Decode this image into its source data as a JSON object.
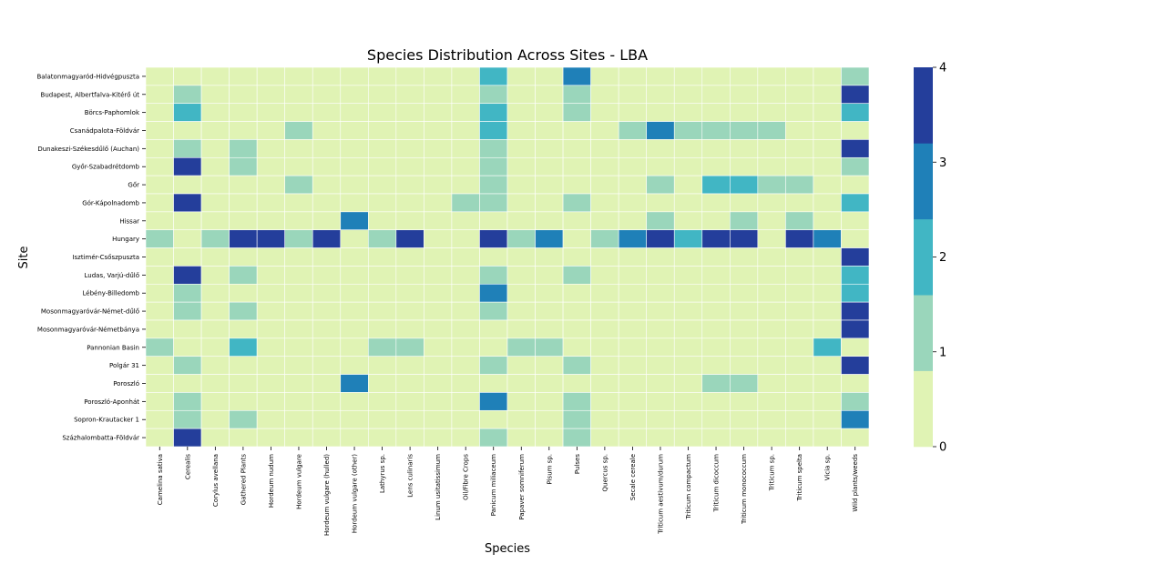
{
  "chart_data": {
    "type": "heatmap",
    "title": "Species Distribution Across Sites - LBA",
    "xlabel": "Species",
    "ylabel": "Site",
    "colorbar": {
      "range": [
        0,
        4
      ],
      "ticks": [
        "0",
        "1",
        "2",
        "3",
        "4"
      ],
      "colors": [
        "#e0f3b4",
        "#9ad6bb",
        "#41b6c4",
        "#1f80b8",
        "#243e9b"
      ]
    },
    "x_categories": [
      "Camelina sativa",
      "Cerealis",
      "Corylus avellana",
      "Gathered Plants",
      "Hordeum nudum",
      "Hordeum vulgare",
      "Hordeum vulgare (hulled)",
      "Hordeum vulgare (other)",
      "Lathyrus sp.",
      "Lens culinaris",
      "Linum usitatissimum",
      "Oil/Fibre Crops",
      "Panicum miliaceum",
      "Papaver somniferum",
      "Pisum sp.",
      "Pulses",
      "Quercus sp.",
      "Secale cereale",
      "Triticum aestivum/durum",
      "Triticum compactum",
      "Triticum dicoccum",
      "Triticum monococcum",
      "Triticum sp.",
      "Triticum spelta",
      "Vicia sp.",
      "Wild plants/weeds"
    ],
    "y_categories": [
      "Balatonmagyaród-Hidvégpuszta",
      "Budapest, Albertfalva-Kitérő út",
      "Börcs-Paphomlok",
      "Csanádpalota-Földvár",
      "Dunakeszi-Székesdűlő (Auchan)",
      "Győr-Szabadrétdomb",
      "Gőr",
      "Gór-Kápolnadomb",
      "Hissar",
      "Hungary",
      "Isztimér-Csőszpuszta",
      "Ludas, Varjú-dűlő",
      "Lébény-Billedomb",
      "Mosonmagyaróvár-Német-dűlő",
      "Mosonmagyaróvár-Németbánya",
      "Pannonian Basin",
      "Polgár 31",
      "Poroszló",
      "Poroszló-Aponhát",
      "Sopron-Krautacker 1",
      "Százhalombatta-Földvár"
    ],
    "values": [
      [
        0,
        0,
        0,
        0,
        0,
        0,
        0,
        0,
        0,
        0,
        0,
        0,
        2,
        0,
        0,
        3,
        0,
        0,
        0,
        0,
        0,
        0,
        0,
        0,
        0,
        1
      ],
      [
        0,
        1,
        0,
        0,
        0,
        0,
        0,
        0,
        0,
        0,
        0,
        0,
        1,
        0,
        0,
        1,
        0,
        0,
        0,
        0,
        0,
        0,
        0,
        0,
        0,
        4
      ],
      [
        0,
        2,
        0,
        0,
        0,
        0,
        0,
        0,
        0,
        0,
        0,
        0,
        2,
        0,
        0,
        1,
        0,
        0,
        0,
        0,
        0,
        0,
        0,
        0,
        0,
        2
      ],
      [
        0,
        0,
        0,
        0,
        0,
        1,
        0,
        0,
        0,
        0,
        0,
        0,
        2,
        0,
        0,
        0,
        0,
        1,
        3,
        1,
        1,
        1,
        1,
        0,
        0,
        0
      ],
      [
        0,
        1,
        0,
        1,
        0,
        0,
        0,
        0,
        0,
        0,
        0,
        0,
        1,
        0,
        0,
        0,
        0,
        0,
        0,
        0,
        0,
        0,
        0,
        0,
        0,
        4
      ],
      [
        0,
        4,
        0,
        1,
        0,
        0,
        0,
        0,
        0,
        0,
        0,
        0,
        1,
        0,
        0,
        0,
        0,
        0,
        0,
        0,
        0,
        0,
        0,
        0,
        0,
        1
      ],
      [
        0,
        0,
        0,
        0,
        0,
        1,
        0,
        0,
        0,
        0,
        0,
        0,
        1,
        0,
        0,
        0,
        0,
        0,
        1,
        0,
        2,
        2,
        1,
        1,
        0,
        0
      ],
      [
        0,
        4,
        0,
        0,
        0,
        0,
        0,
        0,
        0,
        0,
        0,
        1,
        1,
        0,
        0,
        1,
        0,
        0,
        0,
        0,
        0,
        0,
        0,
        0,
        0,
        2
      ],
      [
        0,
        0,
        0,
        0,
        0,
        0,
        0,
        3,
        0,
        0,
        0,
        0,
        0,
        0,
        0,
        0,
        0,
        0,
        1,
        0,
        0,
        1,
        0,
        1,
        0,
        0
      ],
      [
        1,
        0,
        1,
        4,
        4,
        1,
        4,
        0,
        1,
        4,
        0,
        0,
        4,
        1,
        3,
        0,
        1,
        3,
        4,
        2,
        4,
        4,
        0,
        4,
        3,
        0
      ],
      [
        0,
        0,
        0,
        0,
        0,
        0,
        0,
        0,
        0,
        0,
        0,
        0,
        0,
        0,
        0,
        0,
        0,
        0,
        0,
        0,
        0,
        0,
        0,
        0,
        0,
        4
      ],
      [
        0,
        4,
        0,
        1,
        0,
        0,
        0,
        0,
        0,
        0,
        0,
        0,
        1,
        0,
        0,
        1,
        0,
        0,
        0,
        0,
        0,
        0,
        0,
        0,
        0,
        2
      ],
      [
        0,
        1,
        0,
        0,
        0,
        0,
        0,
        0,
        0,
        0,
        0,
        0,
        3,
        0,
        0,
        0,
        0,
        0,
        0,
        0,
        0,
        0,
        0,
        0,
        0,
        2
      ],
      [
        0,
        1,
        0,
        1,
        0,
        0,
        0,
        0,
        0,
        0,
        0,
        0,
        1,
        0,
        0,
        0,
        0,
        0,
        0,
        0,
        0,
        0,
        0,
        0,
        0,
        4
      ],
      [
        0,
        0,
        0,
        0,
        0,
        0,
        0,
        0,
        0,
        0,
        0,
        0,
        0,
        0,
        0,
        0,
        0,
        0,
        0,
        0,
        0,
        0,
        0,
        0,
        0,
        4
      ],
      [
        1,
        0,
        0,
        2,
        0,
        0,
        0,
        0,
        1,
        1,
        0,
        0,
        0,
        1,
        1,
        0,
        0,
        0,
        0,
        0,
        0,
        0,
        0,
        0,
        2,
        0
      ],
      [
        0,
        1,
        0,
        0,
        0,
        0,
        0,
        0,
        0,
        0,
        0,
        0,
        1,
        0,
        0,
        1,
        0,
        0,
        0,
        0,
        0,
        0,
        0,
        0,
        0,
        4
      ],
      [
        0,
        0,
        0,
        0,
        0,
        0,
        0,
        3,
        0,
        0,
        0,
        0,
        0,
        0,
        0,
        0,
        0,
        0,
        0,
        0,
        1,
        1,
        0,
        0,
        0,
        0
      ],
      [
        0,
        1,
        0,
        0,
        0,
        0,
        0,
        0,
        0,
        0,
        0,
        0,
        3,
        0,
        0,
        1,
        0,
        0,
        0,
        0,
        0,
        0,
        0,
        0,
        0,
        1
      ],
      [
        0,
        1,
        0,
        1,
        0,
        0,
        0,
        0,
        0,
        0,
        0,
        0,
        0,
        0,
        0,
        1,
        0,
        0,
        0,
        0,
        0,
        0,
        0,
        0,
        0,
        3
      ],
      [
        0,
        4,
        0,
        0,
        0,
        0,
        0,
        0,
        0,
        0,
        0,
        0,
        1,
        0,
        0,
        1,
        0,
        0,
        0,
        0,
        0,
        0,
        0,
        0,
        0,
        0
      ]
    ]
  }
}
